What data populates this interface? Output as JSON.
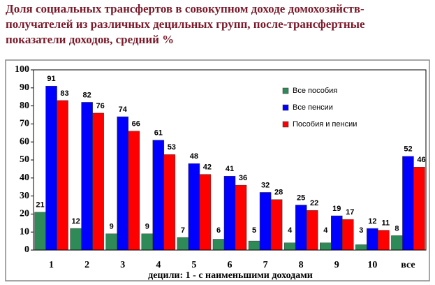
{
  "chart_data": {
    "type": "bar",
    "title": "Доля социальных трансфертов в совокупном доходе домохозяйств-получателей из различных децильных групп, после-трансфертные показатели доходов, средний %",
    "x_label": "децили: 1 - с наименьшими доходами",
    "categories": [
      "1",
      "2",
      "3",
      "4",
      "5",
      "6",
      "7",
      "8",
      "9",
      "10",
      "все"
    ],
    "series": [
      {
        "name": "Все пособия",
        "color": "#2e8b57",
        "values": [
          21,
          12,
          9,
          9,
          7,
          6,
          5,
          4,
          4,
          3,
          8
        ]
      },
      {
        "name": "Все пенсии",
        "color": "#0000ff",
        "values": [
          91,
          82,
          74,
          61,
          48,
          41,
          32,
          25,
          19,
          12,
          52
        ]
      },
      {
        "name": "Пособия и пенсии",
        "color": "#ff0000",
        "values": [
          83,
          76,
          66,
          53,
          42,
          36,
          28,
          22,
          17,
          11,
          46
        ]
      }
    ],
    "ylim": [
      0,
      100
    ],
    "yticks": [
      0,
      10,
      20,
      30,
      40,
      50,
      60,
      70,
      80,
      90,
      100
    ],
    "grid": false,
    "legend": "top-right"
  }
}
